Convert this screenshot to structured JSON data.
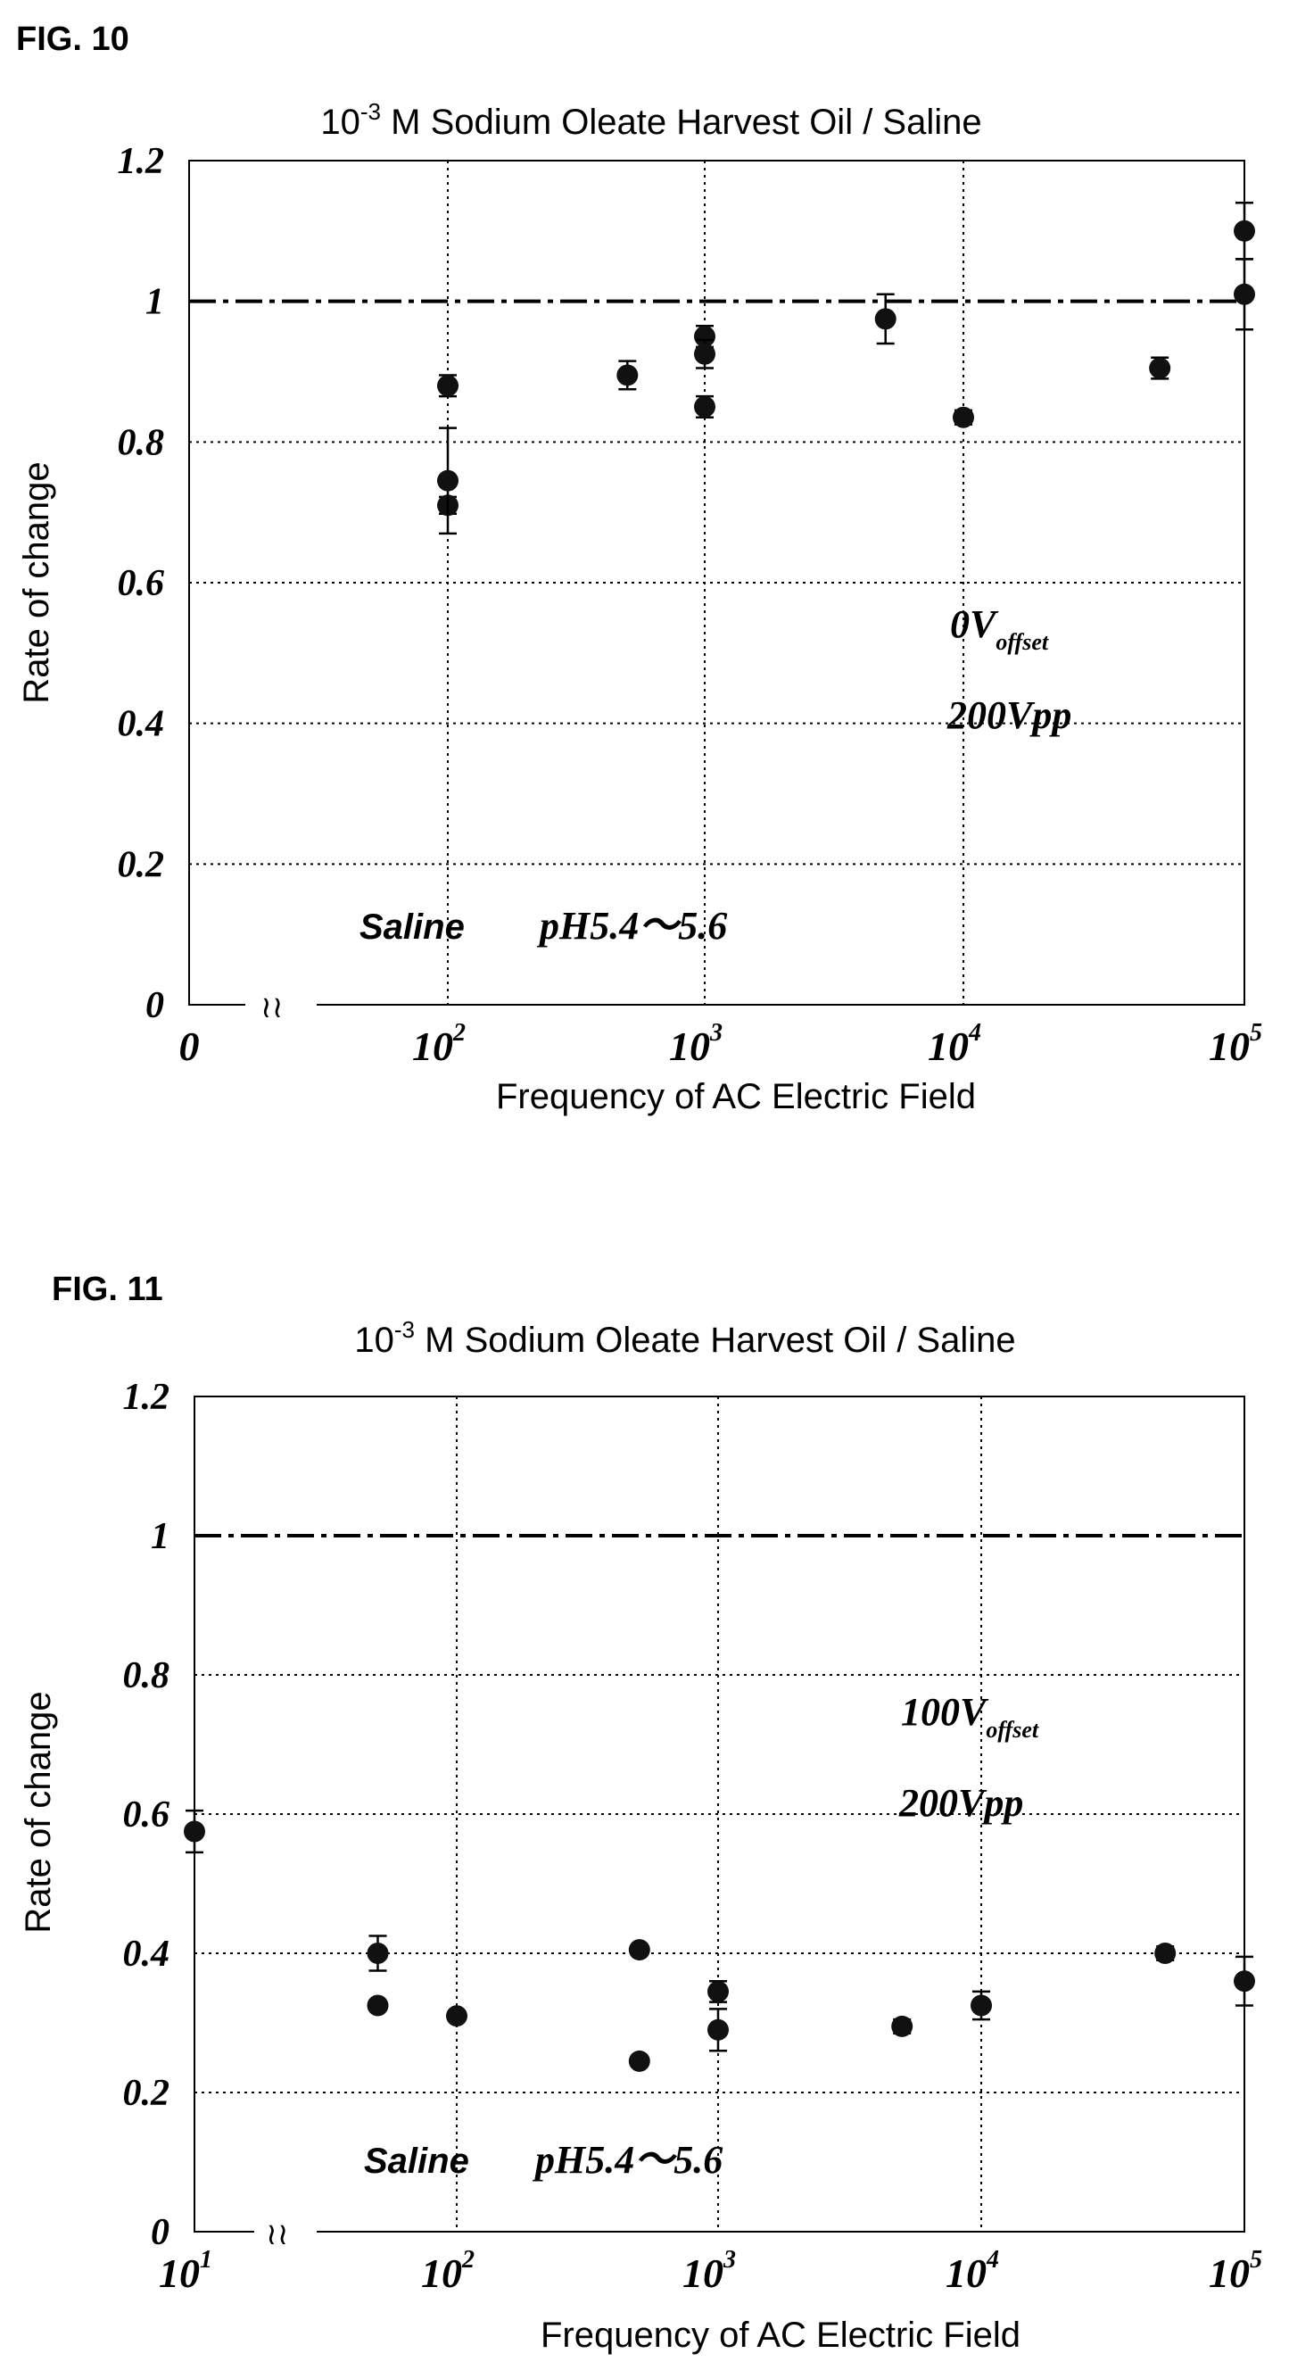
{
  "chart_data": [
    {
      "figure_label": "FIG. 10",
      "type": "scatter",
      "title_base": "10",
      "title_exp": "-3",
      "title_rest": " M Sodium Oleate Harvest Oil / Saline",
      "xlabel": "Frequency of AC Electric Field",
      "ylabel": "Rate of change",
      "x_scale": "log (with axis break near 0)",
      "xlim": [
        0,
        100000
      ],
      "ylim": [
        0,
        1.2
      ],
      "grid": true,
      "x_ticks": [
        {
          "value": 0,
          "base": "0",
          "exp": ""
        },
        {
          "value": 100,
          "base": "10",
          "exp": "2"
        },
        {
          "value": 1000,
          "base": "10",
          "exp": "3"
        },
        {
          "value": 10000,
          "base": "10",
          "exp": "4"
        },
        {
          "value": 100000,
          "base": "10",
          "exp": "5"
        }
      ],
      "y_ticks": [
        "0",
        "0.2",
        "0.4",
        "0.6",
        "0.8",
        "1",
        "1.2"
      ],
      "reference_line": 1.0,
      "annotations": {
        "offset_value": "0V",
        "offset_sub": "offset",
        "vpp": "200Vpp",
        "saline": "Saline",
        "ph": "pH5.4～5.6"
      },
      "points": [
        {
          "x": 50,
          "y": 0.88,
          "err": 0.015
        },
        {
          "x": 50,
          "y": 0.71,
          "err": 0.012
        },
        {
          "x": 100,
          "y": 0.745,
          "err": 0.075
        },
        {
          "x": 500,
          "y": 0.895,
          "err": 0.02
        },
        {
          "x": 1000,
          "y": 0.95,
          "err": 0.015
        },
        {
          "x": 1000,
          "y": 0.925,
          "err": 0.02
        },
        {
          "x": 1000,
          "y": 0.85,
          "err": 0.015
        },
        {
          "x": 5000,
          "y": 0.975,
          "err": 0.035
        },
        {
          "x": 10000,
          "y": 0.835,
          "err": 0.01
        },
        {
          "x": 50000,
          "y": 0.905,
          "err": 0.015
        },
        {
          "x": 100000,
          "y": 1.1,
          "err": 0.04
        },
        {
          "x": 100000,
          "y": 1.01,
          "err": 0.05
        }
      ]
    },
    {
      "figure_label": "FIG. 11",
      "type": "scatter",
      "title_base": "10",
      "title_exp": "-3",
      "title_rest": " M Sodium Oleate Harvest Oil / Saline",
      "xlabel": "Frequency of AC Electric Field",
      "ylabel": "Rate of change",
      "x_scale": "log (with axis break)",
      "xlim": [
        10,
        100000
      ],
      "ylim": [
        0,
        1.2
      ],
      "grid": true,
      "x_ticks": [
        {
          "value": 10,
          "base": "10",
          "exp": "1"
        },
        {
          "value": 100,
          "base": "10",
          "exp": "2"
        },
        {
          "value": 1000,
          "base": "10",
          "exp": "3"
        },
        {
          "value": 10000,
          "base": "10",
          "exp": "4"
        },
        {
          "value": 100000,
          "base": "10",
          "exp": "5"
        }
      ],
      "y_ticks": [
        "0",
        "0.2",
        "0.4",
        "0.6",
        "0.8",
        "1",
        "1.2"
      ],
      "reference_line": 1.0,
      "annotations": {
        "offset_value": "100V",
        "offset_sub": "offset",
        "vpp": "200Vpp",
        "saline": "Saline",
        "ph": "pH5.4～5.6"
      },
      "points": [
        {
          "x": 10,
          "y": 0.575,
          "err": 0.03
        },
        {
          "x": 50,
          "y": 0.4,
          "err": 0.025
        },
        {
          "x": 50,
          "y": 0.325,
          "err": 0.005
        },
        {
          "x": 100,
          "y": 0.31,
          "err": 0.005
        },
        {
          "x": 500,
          "y": 0.405,
          "err": 0.005
        },
        {
          "x": 500,
          "y": 0.245,
          "err": 0.005
        },
        {
          "x": 1000,
          "y": 0.345,
          "err": 0.015
        },
        {
          "x": 1000,
          "y": 0.29,
          "err": 0.03
        },
        {
          "x": 5000,
          "y": 0.295,
          "err": 0.01
        },
        {
          "x": 10000,
          "y": 0.325,
          "err": 0.02
        },
        {
          "x": 50000,
          "y": 0.4,
          "err": 0.01
        },
        {
          "x": 100000,
          "y": 0.36,
          "err": 0.035
        }
      ]
    }
  ]
}
